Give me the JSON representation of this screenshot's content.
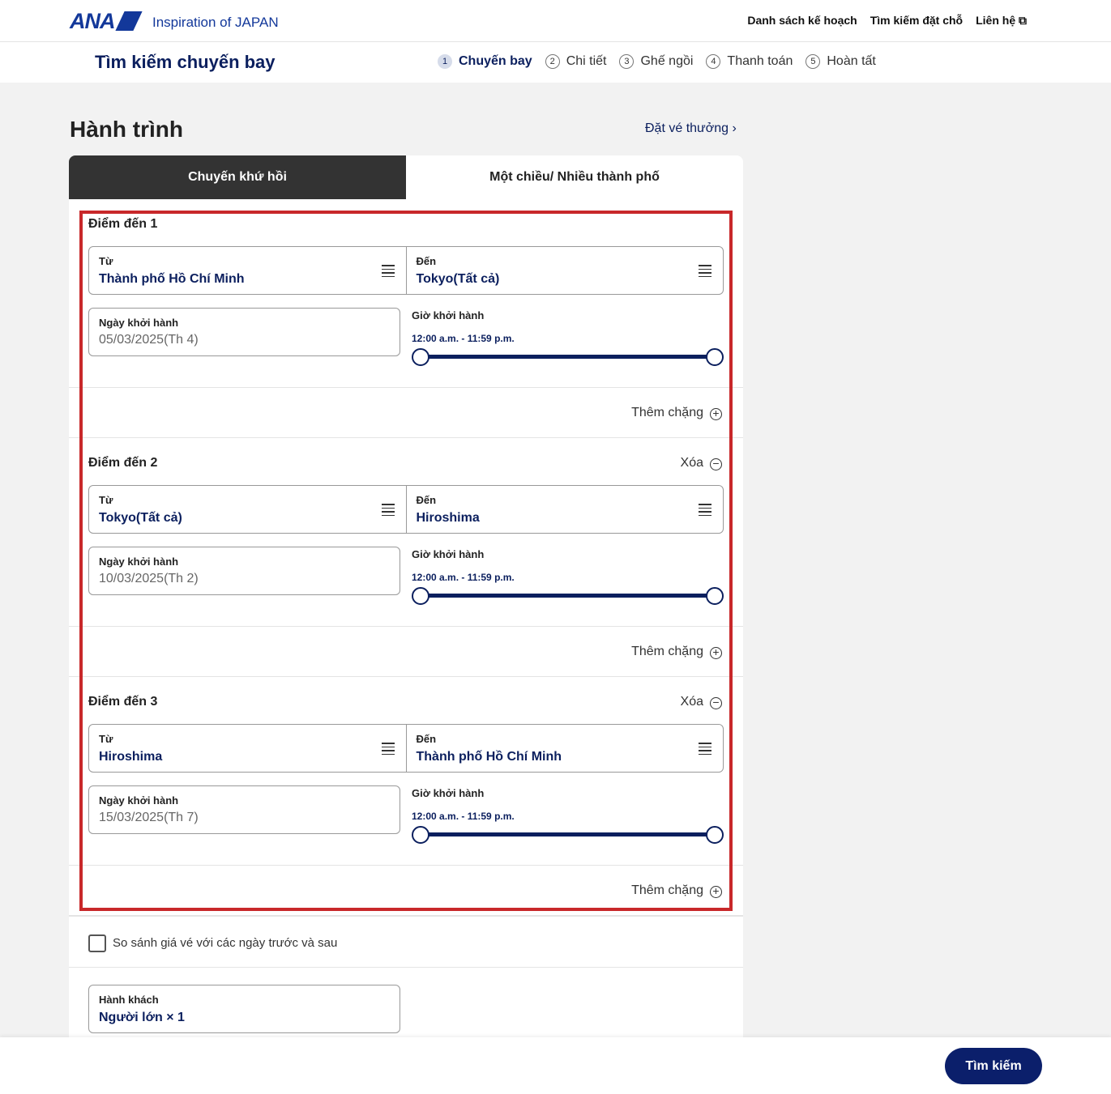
{
  "header": {
    "logo": "ANA",
    "tagline": "Inspiration of JAPAN",
    "nav": [
      "Danh sách kế hoạch",
      "Tìm kiếm đặt chỗ",
      "Liên hệ"
    ]
  },
  "subheader": {
    "title": "Tìm kiếm chuyến bay",
    "steps": [
      {
        "num": "1",
        "label": "Chuyến bay"
      },
      {
        "num": "2",
        "label": "Chi tiết"
      },
      {
        "num": "3",
        "label": "Ghế ngồi"
      },
      {
        "num": "4",
        "label": "Thanh toán"
      },
      {
        "num": "5",
        "label": "Hoàn tất"
      }
    ]
  },
  "main": {
    "title": "Hành trình",
    "regular_link": "Đặt vé thưởng",
    "tabs": [
      "Chuyến khứ hồi",
      "Một chiều/ Nhiều thành phố"
    ],
    "legs": [
      {
        "label": "Điểm đến 1",
        "from_label": "Từ",
        "from": "Thành phố Hồ Chí Minh",
        "to_label": "Đến",
        "to": "Tokyo(Tất cả)",
        "date_label": "Ngày khởi hành",
        "date": "05/03/2025(Th 4)",
        "time_label": "Giờ khởi hành",
        "time_range": "12:00 a.m. - 11:59 p.m.",
        "add": "Thêm chặng"
      },
      {
        "label": "Điểm đến 2",
        "delete": "Xóa",
        "from_label": "Từ",
        "from": "Tokyo(Tất cả)",
        "to_label": "Đến",
        "to": "Hiroshima",
        "date_label": "Ngày khởi hành",
        "date": "10/03/2025(Th 2)",
        "time_label": "Giờ khởi hành",
        "time_range": "12:00 a.m. - 11:59 p.m.",
        "add": "Thêm chặng"
      },
      {
        "label": "Điểm đến 3",
        "delete": "Xóa",
        "from_label": "Từ",
        "from": "Hiroshima",
        "to_label": "Đến",
        "to": "Thành phố Hồ Chí Minh",
        "date_label": "Ngày khởi hành",
        "date": "15/03/2025(Th 7)",
        "time_label": "Giờ khởi hành",
        "time_range": "12:00 a.m. - 11:59 p.m.",
        "add": "Thêm chặng"
      }
    ],
    "compare_label": "So sánh giá vé với các ngày trước và sau",
    "compare_checked": false,
    "passenger_label": "Hành khách",
    "passenger_value": "Người lớn × 1"
  },
  "footer": {
    "search": "Tìm kiếm"
  },
  "colors": {
    "brand": "#0b1f5e",
    "highlight": "#c8282a"
  }
}
